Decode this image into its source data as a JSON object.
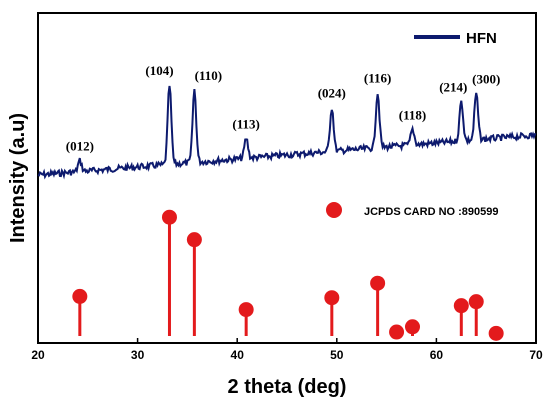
{
  "chart_data": {
    "type": "line",
    "xlabel": "2 theta (deg)",
    "ylabel": "Intensity (a.u)",
    "xlim": [
      20,
      70
    ],
    "xticks": [
      20,
      30,
      40,
      50,
      60,
      70
    ],
    "series": [
      {
        "name": "HFN",
        "color": "#0d1a6e",
        "peaks": [
          {
            "x": 24.2,
            "height": 0.1
          },
          {
            "x": 33.2,
            "height": 0.72
          },
          {
            "x": 35.7,
            "height": 0.66
          },
          {
            "x": 40.9,
            "height": 0.18
          },
          {
            "x": 49.5,
            "height": 0.4
          },
          {
            "x": 54.1,
            "height": 0.5
          },
          {
            "x": 57.6,
            "height": 0.14
          },
          {
            "x": 62.5,
            "height": 0.36
          },
          {
            "x": 64.0,
            "height": 0.42
          }
        ]
      }
    ],
    "peak_labels": [
      {
        "text": "(012)",
        "x": 24.2
      },
      {
        "text": "(104)",
        "x": 33.2
      },
      {
        "text": "(110)",
        "x": 35.7
      },
      {
        "text": "(113)",
        "x": 40.9
      },
      {
        "text": "(024)",
        "x": 49.5
      },
      {
        "text": "(116)",
        "x": 54.1
      },
      {
        "text": "(118)",
        "x": 57.6
      },
      {
        "text": "(214)",
        "x": 62.5
      },
      {
        "text": "(300)",
        "x": 64.0
      }
    ],
    "reference": {
      "name": "JCPDS CARD NO :890599",
      "color": "#e31a1c",
      "lines": [
        {
          "x": 24.2,
          "intensity": 30
        },
        {
          "x": 33.2,
          "intensity": 90
        },
        {
          "x": 35.7,
          "intensity": 73
        },
        {
          "x": 40.9,
          "intensity": 20
        },
        {
          "x": 49.5,
          "intensity": 29
        },
        {
          "x": 54.1,
          "intensity": 40
        },
        {
          "x": 56.0,
          "intensity": 3
        },
        {
          "x": 57.6,
          "intensity": 7
        },
        {
          "x": 62.5,
          "intensity": 23
        },
        {
          "x": 64.0,
          "intensity": 26
        },
        {
          "x": 66.0,
          "intensity": 2
        }
      ]
    },
    "legend": "top-right"
  }
}
